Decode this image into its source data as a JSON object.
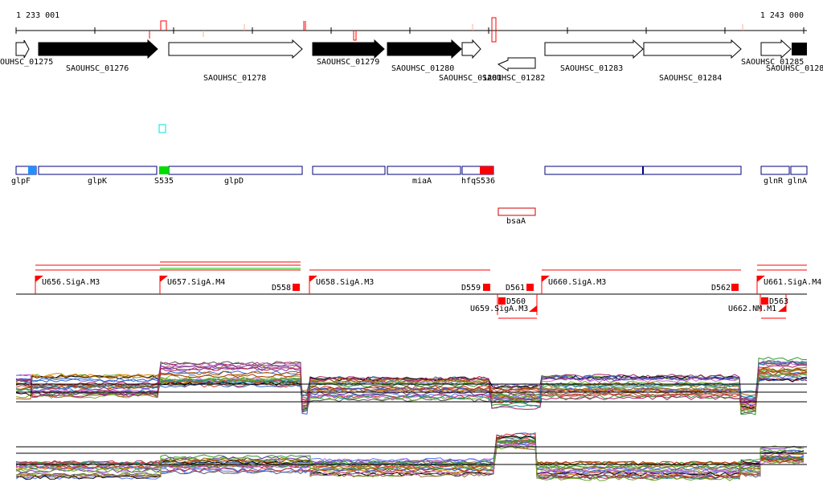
{
  "coords": {
    "start": "1 233 001",
    "end": "1 243 000"
  },
  "genes": [
    {
      "label": "OUHSC_01275",
      "fill": "white"
    },
    {
      "label": "SAOUHSC_01276",
      "fill": "black"
    },
    {
      "label": "SAOUHSC_01278",
      "fill": "white"
    },
    {
      "label": "SAOUHSC_01279",
      "fill": "black"
    },
    {
      "label": "SAOUHSC_01280",
      "fill": "black"
    },
    {
      "label": "SAOUHSC_01281",
      "fill": "white"
    },
    {
      "label": "SAOUHSC_01282",
      "fill": "white"
    },
    {
      "label": "SAOUHSC_01283",
      "fill": "white"
    },
    {
      "label": "SAOUHSC_01284",
      "fill": "white"
    },
    {
      "label": "SAOUHSC_01285",
      "fill": "white"
    },
    {
      "label": "SAOUHSC_0128",
      "fill": "black"
    }
  ],
  "annotations": [
    "glpF",
    "glpK",
    "S535",
    "glpD",
    "miaA",
    "hfq",
    "S536",
    "glnR",
    "glnA"
  ],
  "extra_feature": "bsaA",
  "transcription_units": [
    "U656.SigA.M3",
    "U657.SigA.M4",
    "U658.SigA.M3",
    "U660.SigA.M3",
    "U661.SigA.M4",
    "U659.SigA.M3",
    "U662.NM.M1"
  ],
  "terminators": [
    "D558",
    "D559",
    "D561",
    "D562",
    "D560",
    "D563"
  ],
  "colors": {
    "gene_outline": "#000000",
    "annotation_box": "#000080",
    "tu_line": "#ff0000",
    "signal_lines": "multicolor"
  }
}
